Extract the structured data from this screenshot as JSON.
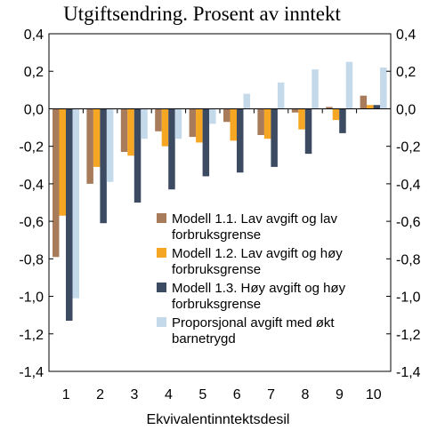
{
  "chart_data": {
    "type": "bar",
    "title": "Utgiftsendring. Prosent av inntekt",
    "xlabel": "Ekvivalentinntektsdesil",
    "ylabel": "",
    "ylim": [
      -1.4,
      0.4
    ],
    "y_ticks": [
      "0,4",
      "0,2",
      "0,0",
      "-0,2",
      "-0,4",
      "-0,6",
      "-0,8",
      "-1,0",
      "-1,2",
      "-1,4"
    ],
    "y_tick_values": [
      0.4,
      0.2,
      0.0,
      -0.2,
      -0.4,
      -0.6,
      -0.8,
      -1.0,
      -1.2,
      -1.4
    ],
    "grid": false,
    "legend_position": "bottom-right inside plot",
    "categories": [
      "1",
      "2",
      "3",
      "4",
      "5",
      "6",
      "7",
      "8",
      "9",
      "10"
    ],
    "series": [
      {
        "name": "Modell 1.1. Lav avgift og lav forbruksgrense",
        "name_lines": [
          "Modell 1.1. Lav avgift og lav",
          "forbruksgrense"
        ],
        "color": "#a87c5b",
        "values": [
          -0.79,
          -0.4,
          -0.23,
          -0.12,
          -0.15,
          -0.07,
          -0.14,
          -0.02,
          0.01,
          0.07
        ]
      },
      {
        "name": "Modell 1.2. Lav avgift og høy forbruksgrense",
        "name_lines": [
          "Modell 1.2. Lav avgift og høy",
          "forbruksgrense"
        ],
        "color": "#f5a623",
        "values": [
          -0.57,
          -0.31,
          -0.25,
          -0.2,
          -0.18,
          -0.17,
          -0.16,
          -0.11,
          -0.06,
          0.02
        ]
      },
      {
        "name": "Modell 1.3. Høy avgift og høy forbruksgrense",
        "name_lines": [
          "Modell 1.3. Høy avgift og høy",
          "forbruksgrense"
        ],
        "color": "#3d4b62",
        "values": [
          -1.13,
          -0.61,
          -0.5,
          -0.43,
          -0.36,
          -0.34,
          -0.31,
          -0.24,
          -0.13,
          0.02
        ]
      },
      {
        "name": "Proporsjonal avgift med økt barnetrygd",
        "name_lines": [
          "Proporsjonal avgift med økt",
          "barnetrygd"
        ],
        "color": "#c4d9ea",
        "values": [
          -1.01,
          -0.39,
          -0.16,
          -0.16,
          -0.08,
          0.08,
          0.14,
          0.21,
          0.25,
          0.22
        ]
      }
    ]
  }
}
